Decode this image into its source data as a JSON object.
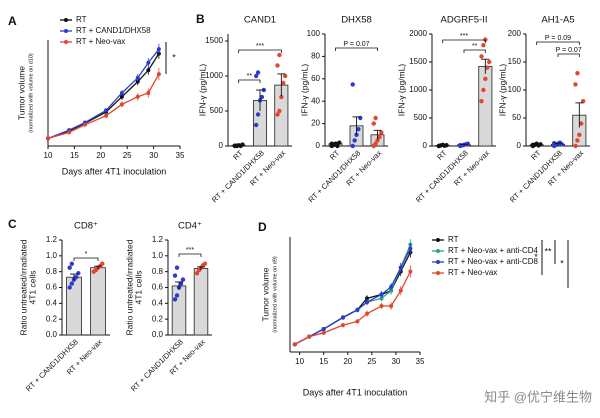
{
  "chart_data": [
    {
      "type": "line",
      "panel_label": "A",
      "ylabel": "Tumor volume",
      "ylabel_sub": "(normalized with volume on d10)",
      "xlabel": "Days after 4T1 inoculation",
      "x": [
        10,
        14,
        17,
        21,
        24,
        27,
        29,
        31
      ],
      "xlim": [
        10,
        35
      ],
      "xticks": [
        10,
        15,
        20,
        25,
        30,
        35
      ],
      "ylim": [
        0,
        14
      ],
      "series": [
        {
          "name": "RT",
          "color": "#111111",
          "values": [
            1,
            2,
            3,
            4.5,
            6.5,
            8.5,
            10,
            12.2
          ],
          "errors": [
            0.05,
            0.1,
            0.2,
            0.3,
            0.4,
            0.5,
            0.6,
            0.7
          ]
        },
        {
          "name": "RT + CAND1/DHX58",
          "color": "#2b3bd1",
          "values": [
            1,
            2.1,
            3.1,
            4.7,
            7,
            9,
            11,
            12.8
          ],
          "errors": [
            0.05,
            0.1,
            0.2,
            0.3,
            0.4,
            0.5,
            0.6,
            0.7
          ]
        },
        {
          "name": "RT + Neo-vax",
          "color": "#e2462c",
          "values": [
            1,
            1.8,
            2.8,
            4,
            5.5,
            6.5,
            7,
            9.5
          ],
          "errors": [
            0.05,
            0.1,
            0.2,
            0.3,
            0.4,
            0.5,
            0.6,
            0.8
          ]
        }
      ],
      "annotations": [
        "*"
      ]
    },
    {
      "type": "bar",
      "panel_label": "B",
      "title": "CAND1",
      "ylabel": "IFN-γ (pg/mL)",
      "categories": [
        "RT",
        "RT + CAND1/DHX58",
        "RT + Neo-vax"
      ],
      "colors": [
        "#111111",
        "#2b3bd1",
        "#e2462c"
      ],
      "bar_color": "#d9d9d9",
      "ylim": [
        0,
        1600
      ],
      "yticks": [
        0,
        500,
        1000,
        1500
      ],
      "values": [
        10,
        650,
        870
      ],
      "errors": [
        5,
        150,
        160
      ],
      "points": [
        [
          0,
          5,
          10,
          0,
          20,
          5,
          0
        ],
        [
          300,
          450,
          650,
          700,
          800,
          1000,
          1050
        ],
        [
          450,
          500,
          700,
          900,
          1000,
          1150,
          1300
        ]
      ],
      "annotations": [
        "**",
        "***"
      ]
    },
    {
      "type": "bar",
      "title": "DHX58",
      "ylabel": "IFN-γ (pg/mL)",
      "categories": [
        "RT",
        "RT + CAND1/DHX58",
        "RT + Neo-vax"
      ],
      "colors": [
        "#111111",
        "#2b3bd1",
        "#e2462c"
      ],
      "bar_color": "#d9d9d9",
      "ylim": [
        0,
        100
      ],
      "yticks": [
        0,
        20,
        40,
        60,
        80,
        100
      ],
      "values": [
        2,
        18,
        10
      ],
      "errors": [
        1,
        8,
        4
      ],
      "points": [
        [
          0,
          1,
          2,
          0,
          3,
          2,
          1
        ],
        [
          0,
          5,
          10,
          15,
          25,
          55
        ],
        [
          0,
          2,
          5,
          8,
          12,
          20,
          25
        ]
      ],
      "annotations": [
        "P = 0.07"
      ]
    },
    {
      "type": "bar",
      "title": "ADGRF5-II",
      "ylabel": "IFN-γ (pg/mL)",
      "categories": [
        "RT",
        "RT + CAND1/DHX58",
        "RT + Neo-vax"
      ],
      "colors": [
        "#111111",
        "#2b3bd1",
        "#e2462c"
      ],
      "bar_color": "#d9d9d9",
      "ylim": [
        0,
        2000
      ],
      "yticks": [
        0,
        500,
        1000,
        1500,
        2000
      ],
      "values": [
        10,
        20,
        1420
      ],
      "errors": [
        5,
        10,
        130
      ],
      "points": [
        [
          0,
          10,
          20,
          5,
          15,
          0
        ],
        [
          0,
          10,
          20,
          30,
          40,
          15
        ],
        [
          800,
          1000,
          1200,
          1400,
          1500,
          1600,
          1800,
          1900
        ]
      ],
      "annotations": [
        "***",
        "**"
      ]
    },
    {
      "type": "bar",
      "title": "AH1-A5",
      "ylabel": "IFN-γ (pg/mL)",
      "categories": [
        "RT",
        "RT + CAND1/DHX58",
        "RT + Neo-vax"
      ],
      "colors": [
        "#111111",
        "#2b3bd1",
        "#e2462c"
      ],
      "bar_color": "#d9d9d9",
      "ylim": [
        0,
        200
      ],
      "yticks": [
        0,
        50,
        100,
        150,
        200
      ],
      "values": [
        2,
        3,
        55
      ],
      "errors": [
        1,
        2,
        22
      ],
      "points": [
        [
          0,
          2,
          4,
          1,
          3,
          2
        ],
        [
          0,
          2,
          4,
          6,
          3,
          5
        ],
        [
          0,
          10,
          20,
          40,
          80,
          110,
          130
        ]
      ],
      "annotations": [
        "P = 0.09",
        "P = 0.07"
      ]
    },
    {
      "type": "bar",
      "panel_label": "C",
      "title": "CD8⁺",
      "ylabel": "Ratio untreated/irradiated",
      "ylabel_sub": "4T1 cells",
      "categories": [
        "RT + CAND1/DHX58",
        "RT + Neo-vax"
      ],
      "colors": [
        "#2b3bd1",
        "#e2462c"
      ],
      "bar_color": "#d9d9d9",
      "ylim": [
        0,
        1.2
      ],
      "yticks": [
        {
          "value": 0,
          "label": "0.0"
        },
        {
          "value": 0.2,
          "label": "0.2"
        },
        {
          "value": 0.4,
          "label": "0.4"
        },
        {
          "value": 0.6,
          "label": "0.6"
        },
        {
          "value": 0.8,
          "label": "0.8"
        },
        {
          "value": 1,
          "label": "1.0"
        },
        {
          "value": 1.2,
          "label": "1.2"
        }
      ],
      "values": [
        0.73,
        0.85
      ],
      "errors": [
        0.04,
        0.02
      ],
      "points": [
        [
          0.6,
          0.65,
          0.7,
          0.73,
          0.78,
          0.85,
          0.9
        ],
        [
          0.8,
          0.82,
          0.85,
          0.87,
          0.9
        ]
      ],
      "annotations": [
        "*"
      ]
    },
    {
      "type": "bar",
      "title": "CD4⁺",
      "ylabel": "Ratio untreated/irradiated",
      "ylabel_sub": "4T1 cells",
      "categories": [
        "RT + CAND1/DHX58",
        "RT + Neo-vax"
      ],
      "colors": [
        "#2b3bd1",
        "#e2462c"
      ],
      "bar_color": "#d9d9d9",
      "ylim": [
        0,
        1.2
      ],
      "yticks": [
        {
          "value": 0,
          "label": "0.0"
        },
        {
          "value": 0.2,
          "label": "0.2"
        },
        {
          "value": 0.4,
          "label": "0.4"
        },
        {
          "value": 0.6,
          "label": "0.6"
        },
        {
          "value": 0.8,
          "label": "0.8"
        },
        {
          "value": 1,
          "label": "1.0"
        },
        {
          "value": 1.2,
          "label": "1.2"
        }
      ],
      "values": [
        0.62,
        0.84
      ],
      "errors": [
        0.05,
        0.02
      ],
      "points": [
        [
          0.45,
          0.5,
          0.6,
          0.65,
          0.7,
          0.75,
          0.85
        ],
        [
          0.78,
          0.82,
          0.85,
          0.88,
          0.9
        ]
      ],
      "annotations": [
        "***"
      ]
    },
    {
      "type": "line",
      "panel_label": "D",
      "ylabel": "Tumor volume",
      "ylabel_sub": "(normalized with volume on d9)",
      "xlabel": "Days after 4T1 inoculation",
      "x": [
        9,
        12,
        15,
        19,
        22,
        24,
        27,
        29,
        31,
        33
      ],
      "xlim": [
        8,
        35
      ],
      "xticks": [
        10,
        15,
        20,
        25,
        30,
        35
      ],
      "ylim": [
        0,
        15
      ],
      "series": [
        {
          "name": "RT",
          "color": "#111111",
          "values": [
            1,
            2,
            3,
            4.5,
            5.5,
            7,
            7.5,
            8,
            10.5,
            13
          ],
          "errors": [
            0.05,
            0.1,
            0.2,
            0.3,
            0.3,
            0.4,
            0.4,
            0.5,
            0.6,
            0.7
          ]
        },
        {
          "name": "RT + Neo-vax + anti-CD4",
          "color": "#2aa58a",
          "values": [
            1,
            2,
            3,
            4.5,
            5.5,
            6.5,
            7,
            8,
            11,
            14
          ],
          "errors": [
            0.05,
            0.1,
            0.2,
            0.3,
            0.3,
            0.4,
            0.4,
            0.5,
            0.6,
            0.7
          ]
        },
        {
          "name": "RT + Neo-vax + anti-CD8",
          "color": "#2b3bd1",
          "values": [
            1,
            2,
            3,
            4.5,
            5.5,
            6.5,
            7.5,
            8.5,
            11,
            13.5
          ],
          "errors": [
            0.05,
            0.1,
            0.2,
            0.3,
            0.3,
            0.4,
            0.4,
            0.5,
            0.6,
            0.7
          ]
        },
        {
          "name": "RT + Neo-vax",
          "color": "#e2462c",
          "values": [
            1,
            2,
            2.5,
            3.5,
            4,
            5,
            6,
            6,
            8,
            10.5
          ],
          "errors": [
            0.05,
            0.1,
            0.2,
            0.3,
            0.3,
            0.4,
            0.4,
            0.5,
            0.6,
            0.8
          ]
        }
      ],
      "annotations": [
        "*",
        "**",
        "*"
      ]
    }
  ],
  "watermark": "知乎 @优宁维生物"
}
